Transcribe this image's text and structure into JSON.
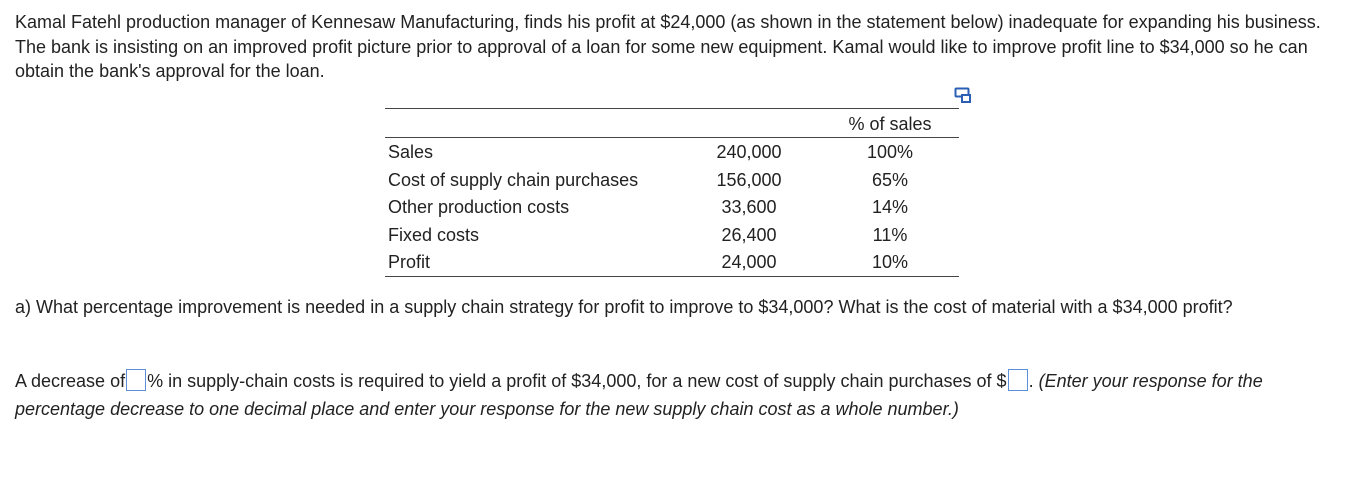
{
  "intro_text": "Kamal Fatehl production manager of Kennesaw Manufacturing, finds his profit at $24,000 (as shown in the statement below) inadequate for expanding his business. The bank is insisting on an improved profit picture prior to approval of a loan for some new equipment. Kamal would like to improve profit line to $34,000 so he can obtain the bank's approval for the loan.",
  "statement": {
    "pct_header": "% of sales",
    "rows": [
      {
        "label": "Sales",
        "amount": "240,000",
        "pct": "100%"
      },
      {
        "label": "Cost of supply chain purchases",
        "amount": "156,000",
        "pct": "65%"
      },
      {
        "label": "Other production costs",
        "amount": "33,600",
        "pct": "14%"
      },
      {
        "label": "Fixed costs",
        "amount": "26,400",
        "pct": "11%"
      },
      {
        "label": "Profit",
        "amount": "24,000",
        "pct": "10%"
      }
    ]
  },
  "question_text": "a) What percentage improvement is needed in a supply chain strategy for profit to improve to $34,000? What is the cost of material with a $34,000 profit?",
  "answer": {
    "part1": "A decrease of",
    "part2": "% in supply-chain costs is required to yield a profit of $34,000, for a new cost of supply chain purchases of $",
    "part3": ".",
    "note": "(Enter your response for the percentage decrease to one decimal place and enter your response for the new supply chain cost as a whole number.)",
    "percent_value": "",
    "cost_value": ""
  },
  "icons": {
    "copy": "copy-table-icon"
  },
  "colors": {
    "input_border": "#5b8fd9",
    "text": "#222222"
  }
}
